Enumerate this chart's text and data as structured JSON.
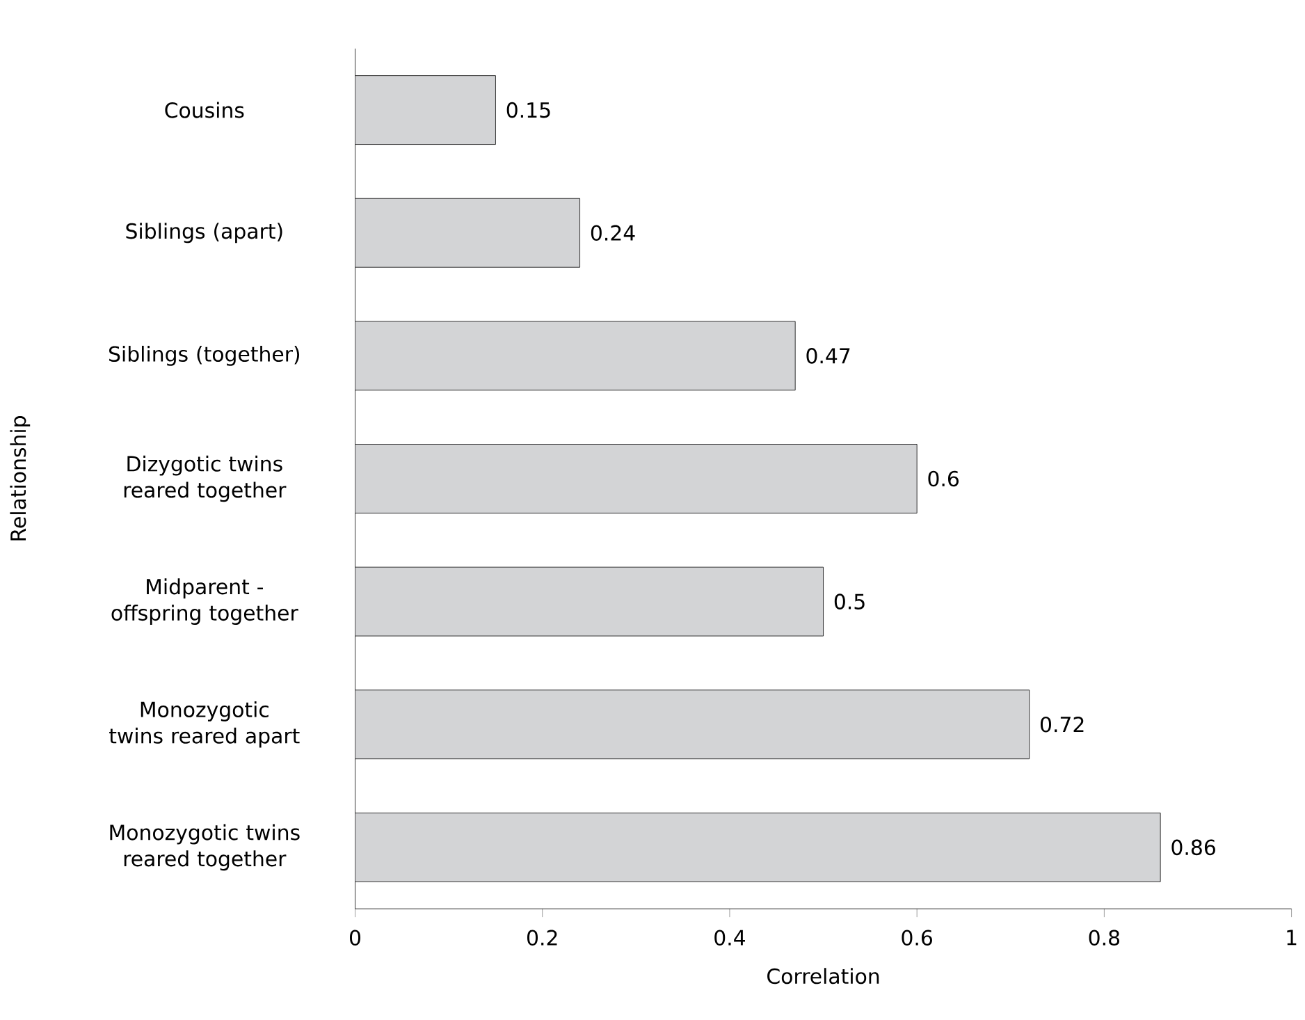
{
  "chart_data": {
    "type": "bar",
    "orientation": "horizontal",
    "xlabel": "Correlation",
    "ylabel": "Relationship",
    "categories": [
      "Cousins",
      "Siblings (apart)",
      "Siblings (together)",
      "Dizygotic twins reared together",
      "Midparent - offspring together",
      "Monozygotic twins reared apart",
      "Monozygotic twins reared together"
    ],
    "values": [
      0.15,
      0.24,
      0.47,
      0.6,
      0.5,
      0.72,
      0.86
    ],
    "color": "#d3d4d6",
    "xlim": [
      0,
      1
    ],
    "xticks": [
      0,
      0.2,
      0.4,
      0.6,
      0.8,
      1
    ],
    "data_labels": true
  }
}
